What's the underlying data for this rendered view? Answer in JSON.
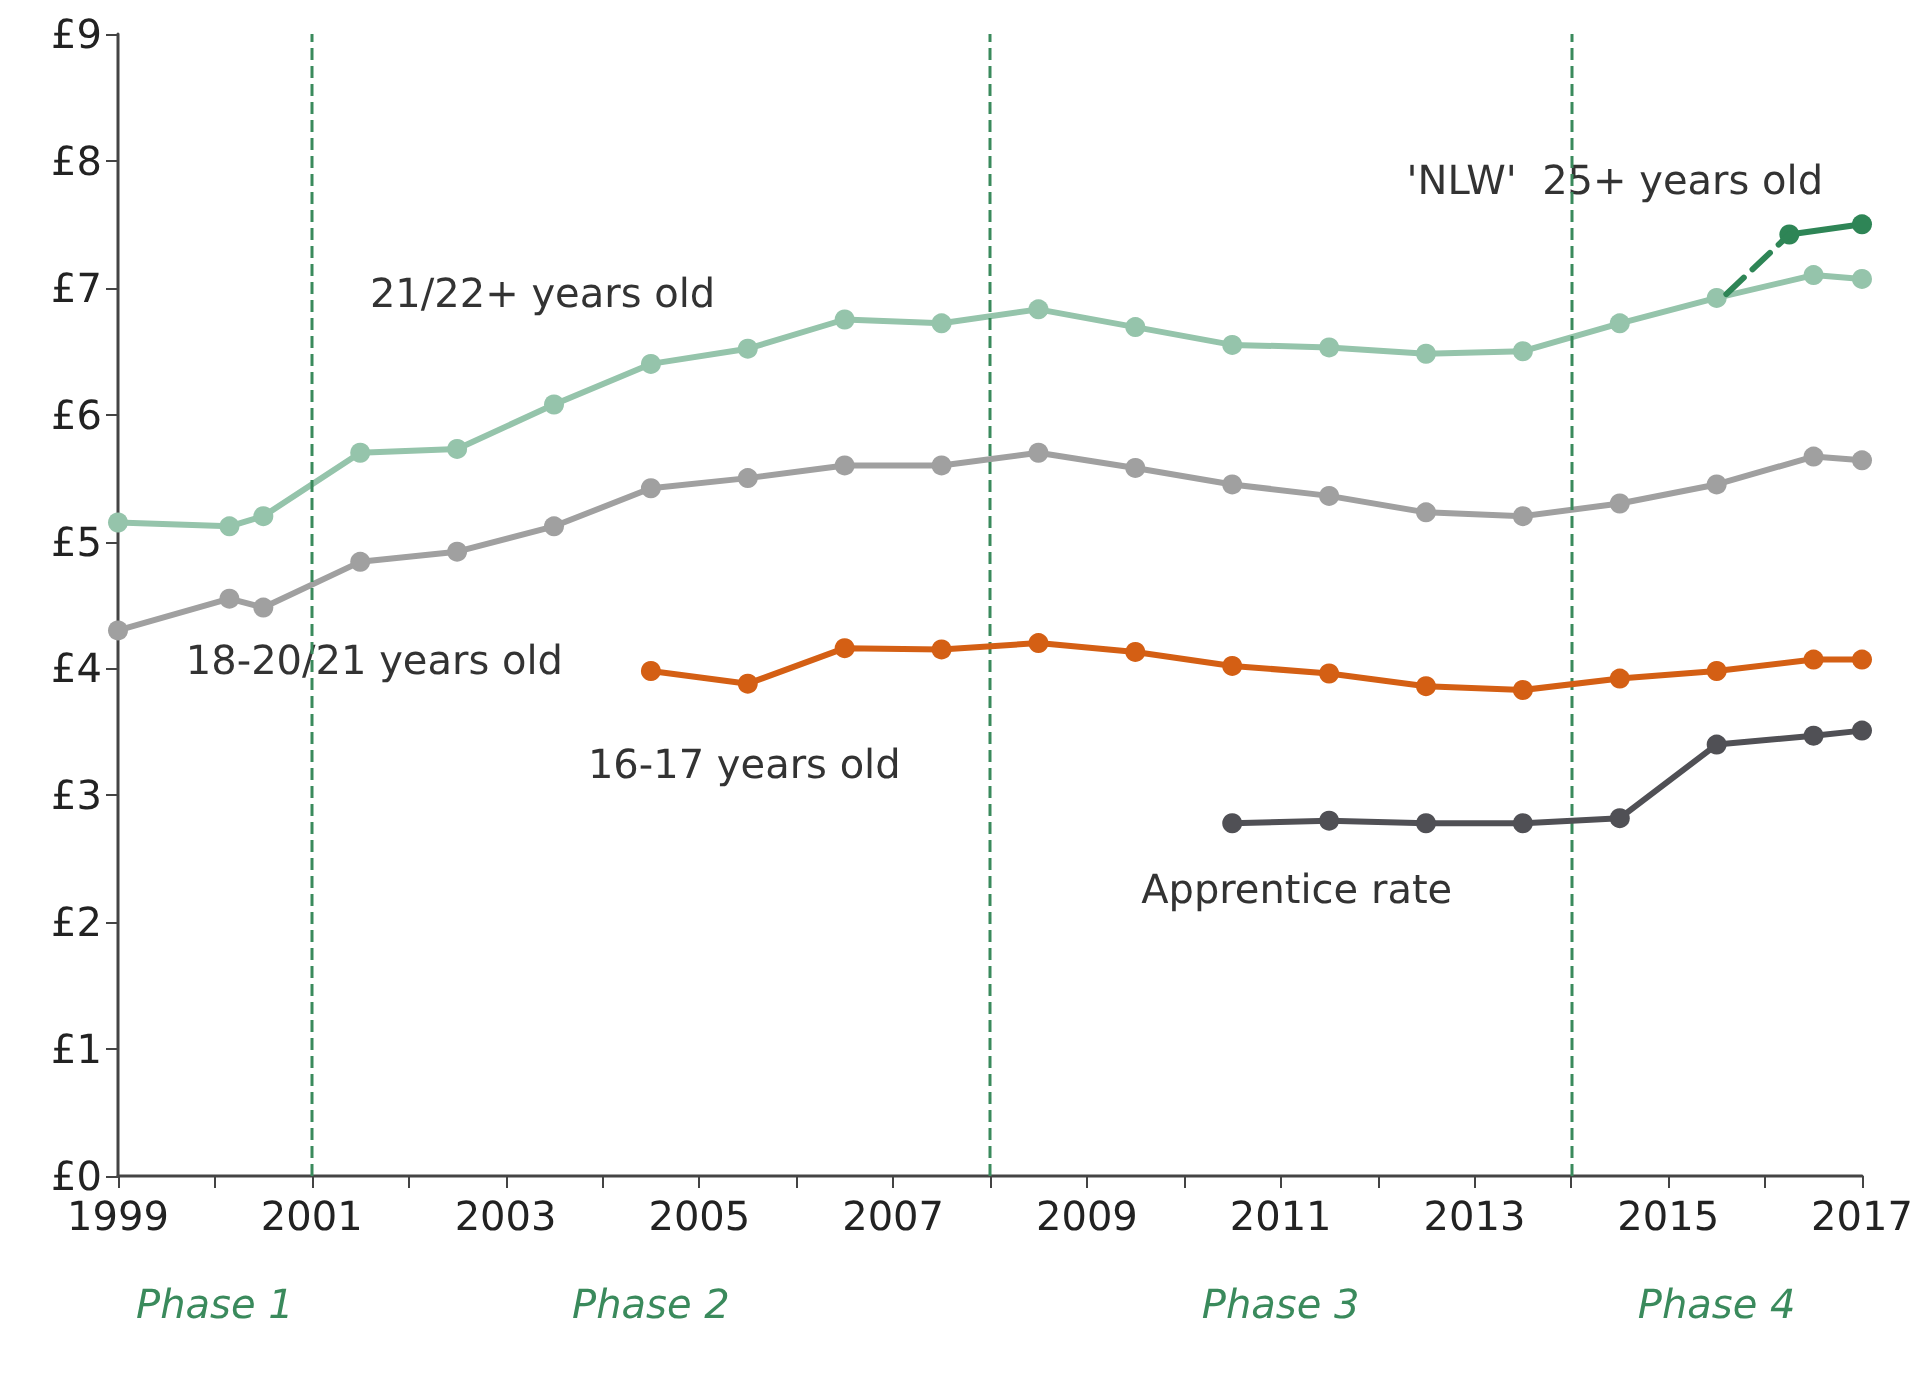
{
  "chart_data": {
    "type": "line",
    "legend": false,
    "grid": false,
    "marker": "circle",
    "line_style": "solid",
    "xlim": [
      1999,
      2017
    ],
    "xticks": [
      1999,
      {
        "value": 2000,
        "label": null
      },
      2001,
      {
        "value": 2002,
        "label": null
      },
      2003,
      {
        "value": 2004,
        "label": null
      },
      2005,
      {
        "value": 2006,
        "label": null
      },
      2007,
      {
        "value": 2008,
        "label": null
      },
      2009,
      {
        "value": 2010,
        "label": null
      },
      2011,
      {
        "value": 2012,
        "label": null
      },
      2013,
      {
        "value": 2014,
        "label": null
      },
      2015,
      {
        "value": 2016,
        "label": null
      },
      2017
    ],
    "ylim": [
      0,
      9
    ],
    "yticks": [
      {
        "value": 0,
        "label": "£0"
      },
      {
        "value": 1,
        "label": "£1"
      },
      {
        "value": 2,
        "label": "£2"
      },
      {
        "value": 3,
        "label": "£3"
      },
      {
        "value": 4,
        "label": "£4"
      },
      {
        "value": 5,
        "label": "£5"
      },
      {
        "value": 6,
        "label": "£6"
      },
      {
        "value": 7,
        "label": "£7"
      },
      {
        "value": 8,
        "label": "£8"
      },
      {
        "value": 9,
        "label": "£9"
      }
    ],
    "series": [
      {
        "name": "21/22+ years old",
        "color": "#95c4ab",
        "x": [
          1999,
          2000.15,
          2000.5,
          2001.5,
          2002.5,
          2003.5,
          2004.5,
          2005.5,
          2006.5,
          2007.5,
          2008.5,
          2009.5,
          2010.5,
          2011.5,
          2012.5,
          2013.5,
          2014.5,
          2015.5,
          2016.5,
          2017
        ],
        "values": [
          5.15,
          5.12,
          5.2,
          5.7,
          5.73,
          6.08,
          6.4,
          6.52,
          6.75,
          6.72,
          6.83,
          6.69,
          6.55,
          6.53,
          6.48,
          6.5,
          6.72,
          6.92,
          7.1,
          7.07
        ]
      },
      {
        "name": "18-20/21 years old",
        "color": "#a0a0a0",
        "x": [
          1999,
          2000.15,
          2000.5,
          2001.5,
          2002.5,
          2003.5,
          2004.5,
          2005.5,
          2006.5,
          2007.5,
          2008.5,
          2009.5,
          2010.5,
          2011.5,
          2012.5,
          2013.5,
          2014.5,
          2015.5,
          2016.5,
          2017
        ],
        "values": [
          4.3,
          4.55,
          4.48,
          4.84,
          4.92,
          5.12,
          5.42,
          5.5,
          5.6,
          5.6,
          5.7,
          5.58,
          5.45,
          5.36,
          5.23,
          5.2,
          5.3,
          5.45,
          5.67,
          5.64
        ]
      },
      {
        "name": "16-17 years old",
        "color": "#d45f14",
        "x": [
          2004.5,
          2005.5,
          2006.5,
          2007.5,
          2008.5,
          2009.5,
          2010.5,
          2011.5,
          2012.5,
          2013.5,
          2014.5,
          2015.5,
          2016.5,
          2017
        ],
        "values": [
          3.98,
          3.88,
          4.16,
          4.15,
          4.2,
          4.13,
          4.02,
          3.96,
          3.86,
          3.83,
          3.92,
          3.98,
          4.07,
          4.07
        ]
      },
      {
        "name": "Apprentice rate",
        "color": "#505055",
        "x": [
          2010.5,
          2011.5,
          2012.5,
          2013.5,
          2014.5,
          2015.5,
          2016.5,
          2017
        ],
        "values": [
          2.78,
          2.8,
          2.78,
          2.78,
          2.82,
          3.4,
          3.47,
          3.51
        ]
      },
      {
        "name": "'NLW'  25+ years old",
        "color": "#2e8556",
        "x": [
          2016.25,
          2017
        ],
        "values": [
          7.42,
          7.5
        ]
      },
      {
        "color": "#2e8556",
        "x": [
          2015.6,
          2016.25
        ],
        "values": [
          6.95,
          7.42
        ],
        "line_style": "dashed",
        "marker": "none"
      }
    ],
    "ref_lines": [
      {
        "axis": "x",
        "value": 2001,
        "color": "#3a8a5c",
        "line_style": "dashed"
      },
      {
        "axis": "x",
        "value": 2008,
        "color": "#3a8a5c",
        "line_style": "dashed"
      },
      {
        "axis": "x",
        "value": 2014,
        "color": "#3a8a5c",
        "line_style": "dashed"
      }
    ],
    "annotations": [
      "Phase 1",
      "Phase 2",
      "Phase 3",
      "Phase 4"
    ]
  }
}
